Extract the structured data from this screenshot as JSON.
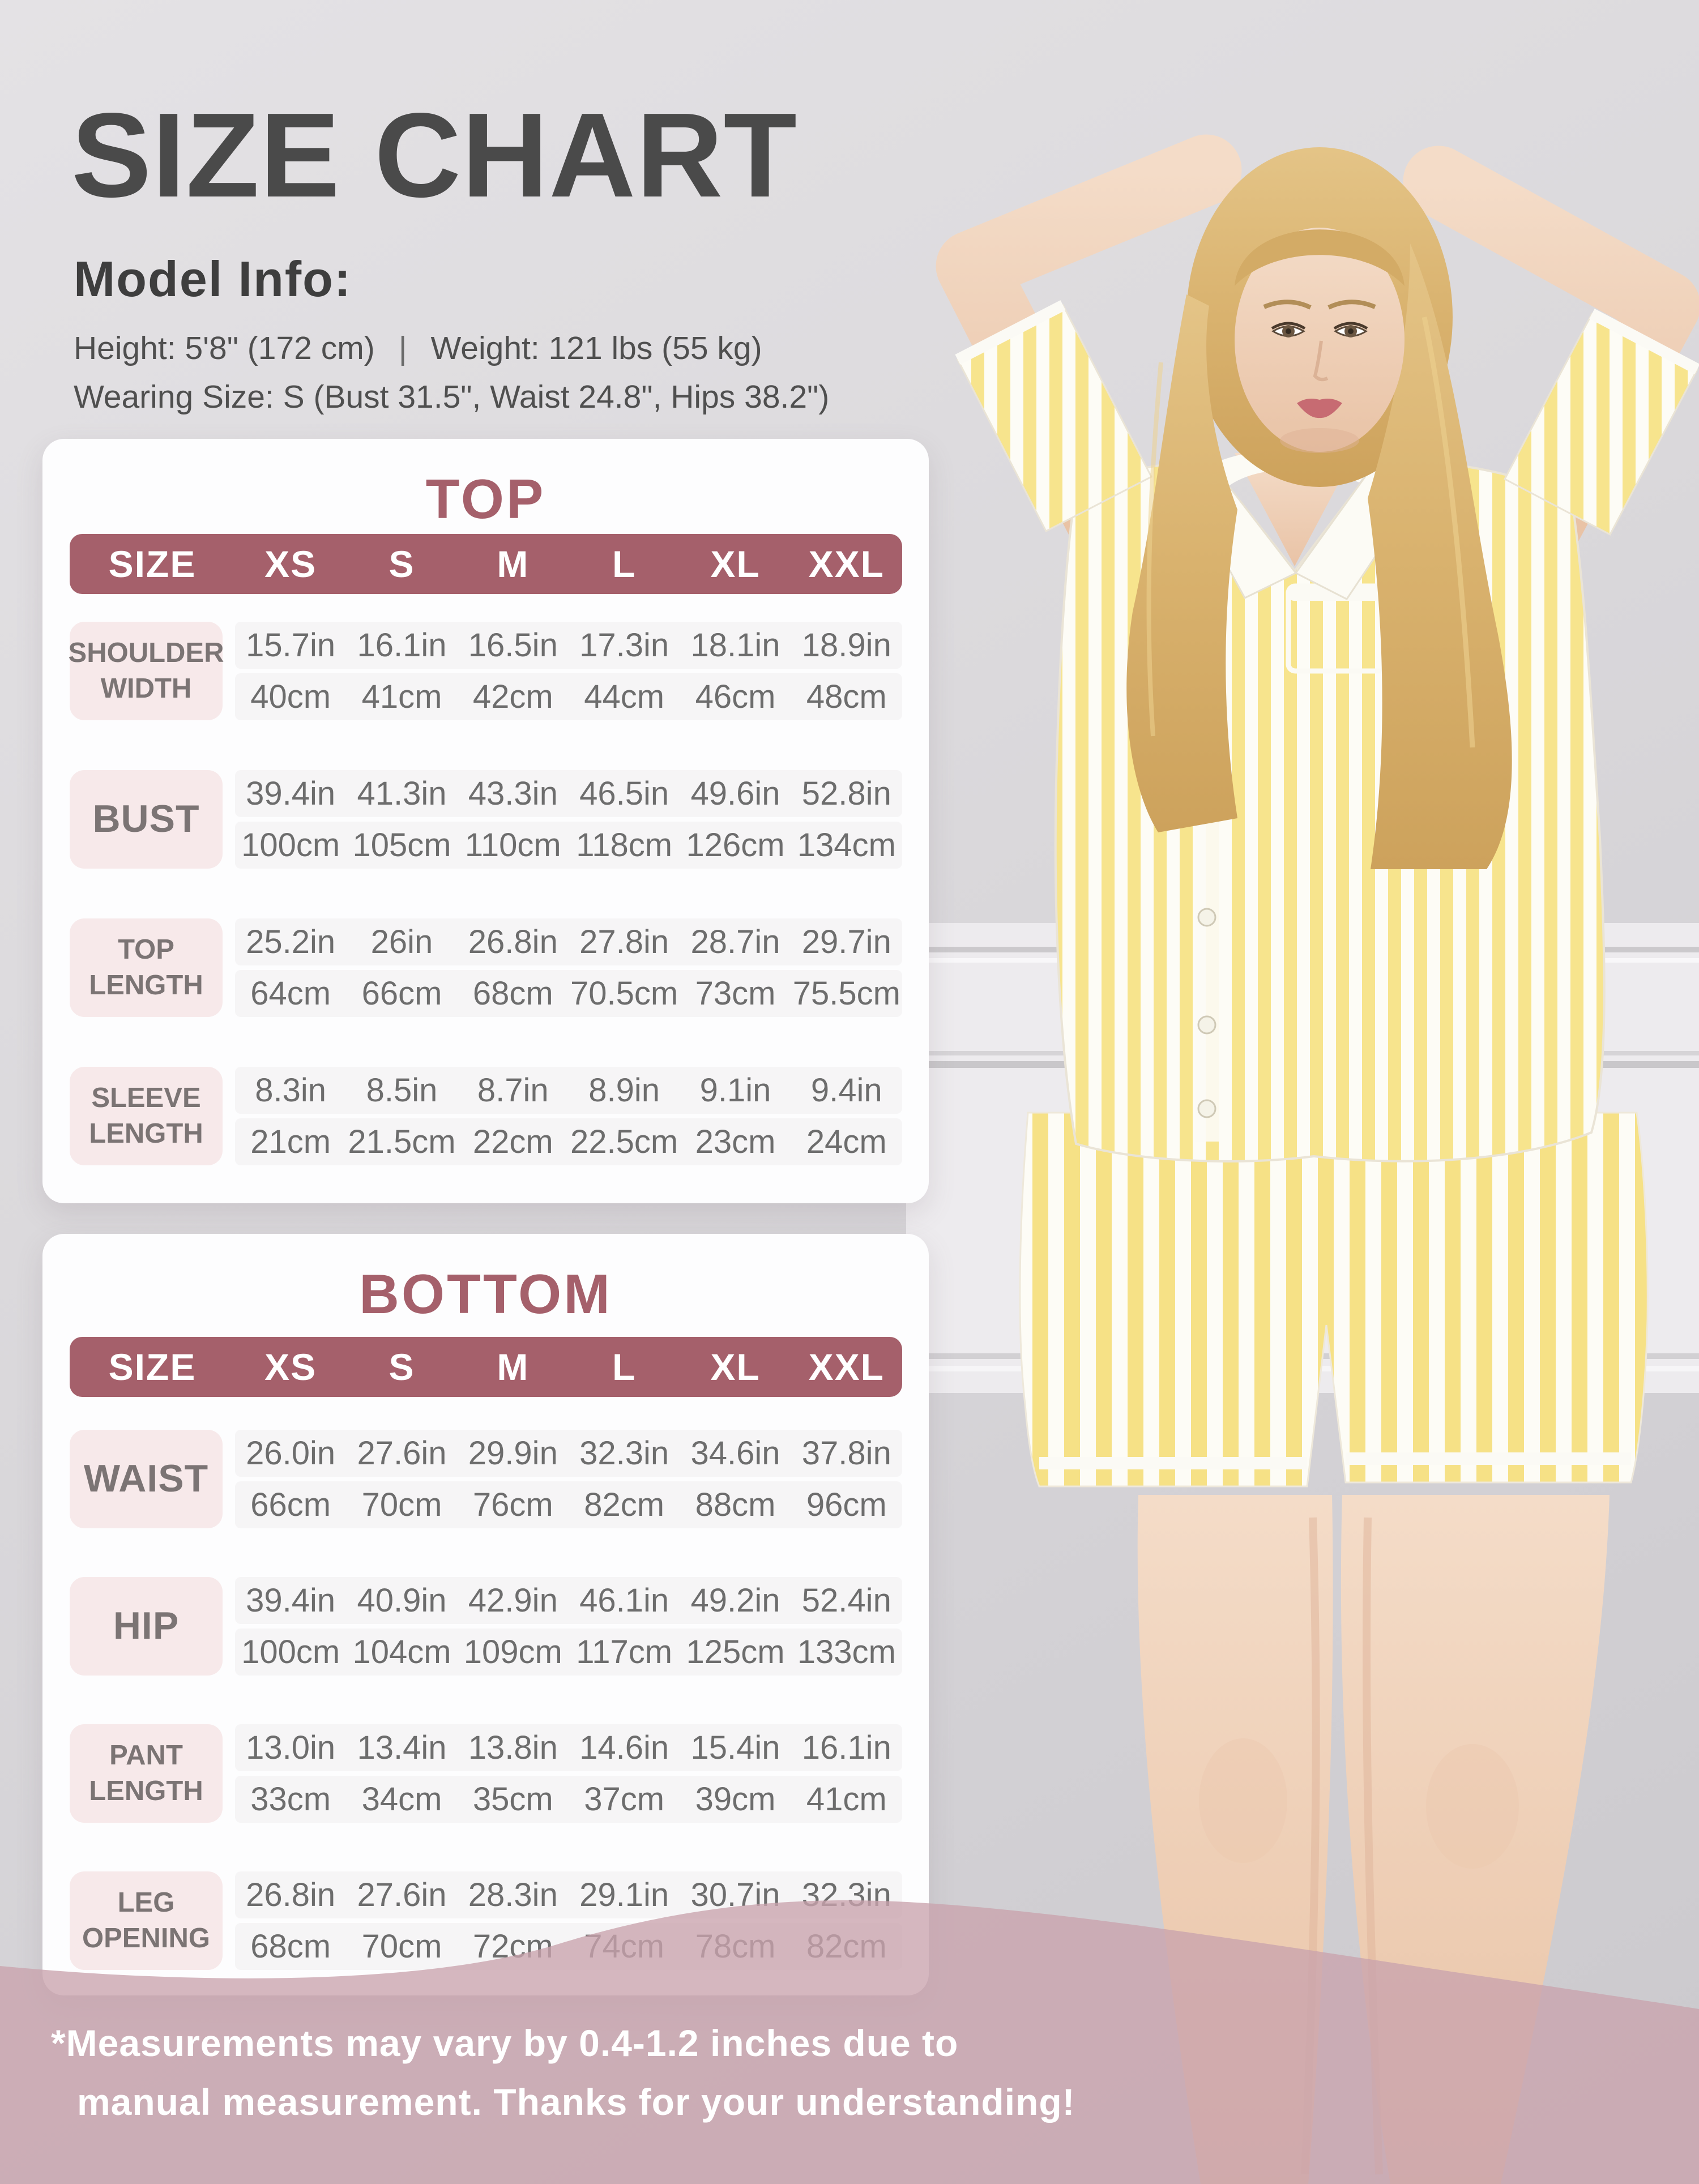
{
  "page": {
    "title": "SIZE CHART",
    "model_info": {
      "heading": "Model Info:",
      "height": "Height: 5'8\" (172 cm)",
      "separator": "|",
      "weight": "Weight: 121 lbs (55 kg)",
      "wearing_size": "Wearing Size: S (Bust 31.5\", Waist 24.8\", Hips 38.2\")"
    },
    "footer": {
      "line1": "*Measurements may vary by 0.4-1.2 inches due to",
      "line2": "manual measurement. Thanks for your understanding!"
    }
  },
  "colors": {
    "accent_maroon": "#a5606b",
    "label_pink": "#f7e9ea",
    "card_white": "#fdfdfe",
    "title_charcoal": "#4a4a4a",
    "value_gray": "#6d6d6d",
    "footer_overlay_pink": "#cbadb6",
    "pajama_yellow": "#f7e48d",
    "background_gray": "#d8d6d9"
  },
  "top_table": {
    "title": "TOP",
    "header": [
      "SIZE",
      "XS",
      "S",
      "M",
      "L",
      "XL",
      "XXL"
    ],
    "rows": [
      {
        "label": "SHOULDER WIDTH",
        "in": [
          "15.7in",
          "16.1in",
          "16.5in",
          "17.3in",
          "18.1in",
          "18.9in"
        ],
        "cm": [
          "40cm",
          "41cm",
          "42cm",
          "44cm",
          "46cm",
          "48cm"
        ]
      },
      {
        "label": "BUST",
        "in": [
          "39.4in",
          "41.3in",
          "43.3in",
          "46.5in",
          "49.6in",
          "52.8in"
        ],
        "cm": [
          "100cm",
          "105cm",
          "110cm",
          "118cm",
          "126cm",
          "134cm"
        ]
      },
      {
        "label": "TOP LENGTH",
        "in": [
          "25.2in",
          "26in",
          "26.8in",
          "27.8in",
          "28.7in",
          "29.7in"
        ],
        "cm": [
          "64cm",
          "66cm",
          "68cm",
          "70.5cm",
          "73cm",
          "75.5cm"
        ]
      },
      {
        "label": "SLEEVE LENGTH",
        "in": [
          "8.3in",
          "8.5in",
          "8.7in",
          "8.9in",
          "9.1in",
          "9.4in"
        ],
        "cm": [
          "21cm",
          "21.5cm",
          "22cm",
          "22.5cm",
          "23cm",
          "24cm"
        ]
      }
    ]
  },
  "bottom_table": {
    "title": "BOTTOM",
    "header": [
      "SIZE",
      "XS",
      "S",
      "M",
      "L",
      "XL",
      "XXL"
    ],
    "rows": [
      {
        "label": "WAIST",
        "in": [
          "26.0in",
          "27.6in",
          "29.9in",
          "32.3in",
          "34.6in",
          "37.8in"
        ],
        "cm": [
          "66cm",
          "70cm",
          "76cm",
          "82cm",
          "88cm",
          "96cm"
        ]
      },
      {
        "label": "HIP",
        "in": [
          "39.4in",
          "40.9in",
          "42.9in",
          "46.1in",
          "49.2in",
          "52.4in"
        ],
        "cm": [
          "100cm",
          "104cm",
          "109cm",
          "117cm",
          "125cm",
          "133cm"
        ]
      },
      {
        "label": "PANT LENGTH",
        "in": [
          "13.0in",
          "13.4in",
          "13.8in",
          "14.6in",
          "15.4in",
          "16.1in"
        ],
        "cm": [
          "33cm",
          "34cm",
          "35cm",
          "37cm",
          "39cm",
          "41cm"
        ]
      },
      {
        "label": "LEG OPENING",
        "in": [
          "26.8in",
          "27.6in",
          "28.3in",
          "29.1in",
          "30.7in",
          "32.3in"
        ],
        "cm": [
          "68cm",
          "70cm",
          "72cm",
          "74cm",
          "78cm",
          "82cm"
        ]
      }
    ]
  }
}
